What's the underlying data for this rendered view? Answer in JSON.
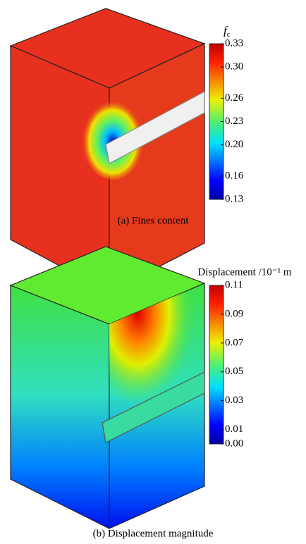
{
  "chart_data": [
    {
      "type": "contour",
      "caption": "(a) Fines content",
      "colorbar_label": {
        "symbol": "f",
        "subscript": "c"
      },
      "colormap": "jet",
      "clim": [
        0.13,
        0.33
      ],
      "cticks": [
        0.13,
        0.16,
        {
          "value": 0.2,
          "label": "0.20"
        },
        0.23,
        0.26,
        {
          "value": 0.3,
          "label": "0.30"
        },
        0.33
      ]
    },
    {
      "type": "contour",
      "caption": "(b) Displacement magnitude",
      "colorbar_label": "Displacement /10⁻¹ m",
      "colormap": "jet",
      "clim": [
        0,
        0.11
      ],
      "cticks": [
        {
          "value": 0,
          "label": "0.00"
        },
        0.01,
        0.03,
        0.05,
        0.07,
        0.09,
        0.11
      ]
    }
  ]
}
